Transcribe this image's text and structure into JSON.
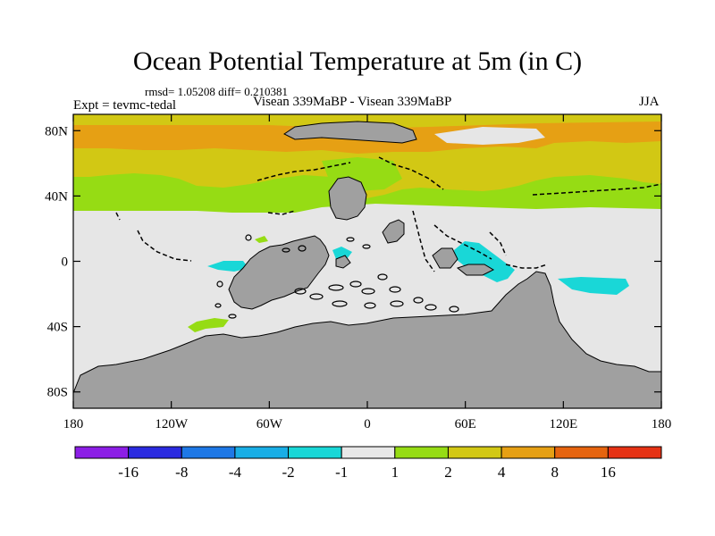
{
  "title": "Ocean Potential Temperature at 5m (in C)",
  "stats": "rmsd= 1.05208  diff= 0.210381",
  "experiment": "Expt = tevmc-tedal",
  "comparison": "Visean 339MaBP - Visean 339MaBP",
  "season": "JJA",
  "y_axis": {
    "ticks": [
      {
        "lat": 80,
        "label": "80N"
      },
      {
        "lat": 40,
        "label": "40N"
      },
      {
        "lat": 0,
        "label": "0"
      },
      {
        "lat": -40,
        "label": "40S"
      },
      {
        "lat": -80,
        "label": "80S"
      }
    ]
  },
  "x_axis": {
    "ticks": [
      {
        "lon": -180,
        "label": "180"
      },
      {
        "lon": -120,
        "label": "120W"
      },
      {
        "lon": -60,
        "label": "60W"
      },
      {
        "lon": 0,
        "label": "0"
      },
      {
        "lon": 60,
        "label": "60E"
      },
      {
        "lon": 120,
        "label": "120E"
      },
      {
        "lon": 180,
        "label": "180"
      }
    ]
  },
  "colorbar": {
    "colors": [
      "#8c1ee6",
      "#2b2be0",
      "#1e78e6",
      "#19aee6",
      "#19d7d7",
      "#e8e8e8",
      "#96dc14",
      "#d2c814",
      "#e6a014",
      "#e6640f",
      "#e63214"
    ],
    "labels": [
      "-16",
      "-8",
      "-4",
      "-2",
      "-1",
      "1",
      "2",
      "4",
      "8",
      "16"
    ]
  },
  "colors": {
    "background": "#e6e6e6",
    "land": "#a0a0a0",
    "coast": "#000000",
    "green": "#96dc14",
    "yellow": "#d2c814",
    "orange": "#e6a014",
    "cyan": "#19d7d7"
  }
}
